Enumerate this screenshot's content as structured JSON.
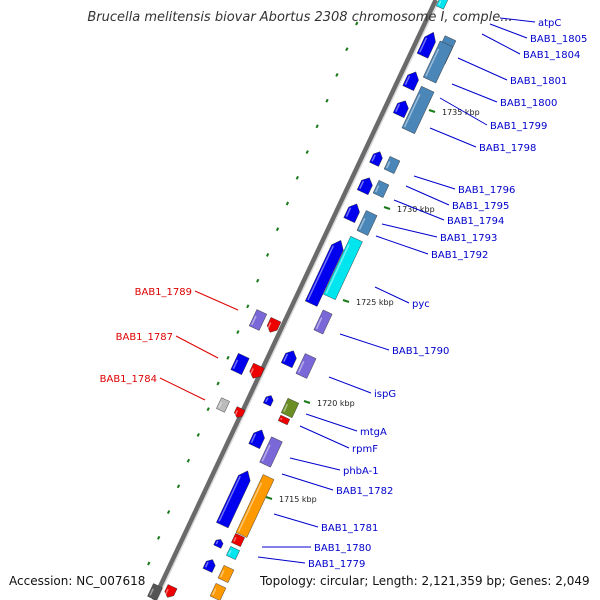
{
  "title": "Brucella melitensis biovar Abortus 2308 chromosome I, comple...",
  "accession": "Accession: NC_007618",
  "topology": "Topology: circular; Length: 2,121,359 bp; Genes: 2,049",
  "colors": {
    "label_blue": "#0000cc",
    "label_red": "#dd0000",
    "gene_blue": "#0000ee",
    "gene_steel": "#4a86b8",
    "gene_cyan": "#00e5ee",
    "gene_purple": "#7b68d8",
    "gene_red": "#ee0000",
    "gene_orange": "#ff9900",
    "gene_olive": "#6b8e23",
    "tick_green": "#1a7a1a"
  },
  "kbp_marks": [
    "1735 kbp",
    "1730 kbp",
    "1725 kbp",
    "1720 kbp",
    "1715 kbp"
  ],
  "gene_labels": [
    {
      "text": "atpC",
      "strand": "forward"
    },
    {
      "text": "BAB1_1805",
      "strand": "forward"
    },
    {
      "text": "BAB1_1804",
      "strand": "forward"
    },
    {
      "text": "BAB1_1801",
      "strand": "forward"
    },
    {
      "text": "BAB1_1800",
      "strand": "forward"
    },
    {
      "text": "BAB1_1799",
      "strand": "forward"
    },
    {
      "text": "BAB1_1798",
      "strand": "forward"
    },
    {
      "text": "BAB1_1796",
      "strand": "forward"
    },
    {
      "text": "BAB1_1795",
      "strand": "forward"
    },
    {
      "text": "BAB1_1794",
      "strand": "forward"
    },
    {
      "text": "BAB1_1793",
      "strand": "forward"
    },
    {
      "text": "BAB1_1792",
      "strand": "forward"
    },
    {
      "text": "pyc",
      "strand": "forward"
    },
    {
      "text": "BAB1_1790",
      "strand": "forward"
    },
    {
      "text": "ispG",
      "strand": "forward"
    },
    {
      "text": "mtgA",
      "strand": "forward"
    },
    {
      "text": "rpmF",
      "strand": "forward"
    },
    {
      "text": "phbA-1",
      "strand": "forward"
    },
    {
      "text": "BAB1_1782",
      "strand": "forward"
    },
    {
      "text": "BAB1_1781",
      "strand": "forward"
    },
    {
      "text": "BAB1_1780",
      "strand": "forward"
    },
    {
      "text": "BAB1_1779",
      "strand": "forward"
    },
    {
      "text": "BAB1_1789",
      "strand": "reverse"
    },
    {
      "text": "BAB1_1787",
      "strand": "reverse"
    },
    {
      "text": "BAB1_1784",
      "strand": "reverse"
    }
  ]
}
